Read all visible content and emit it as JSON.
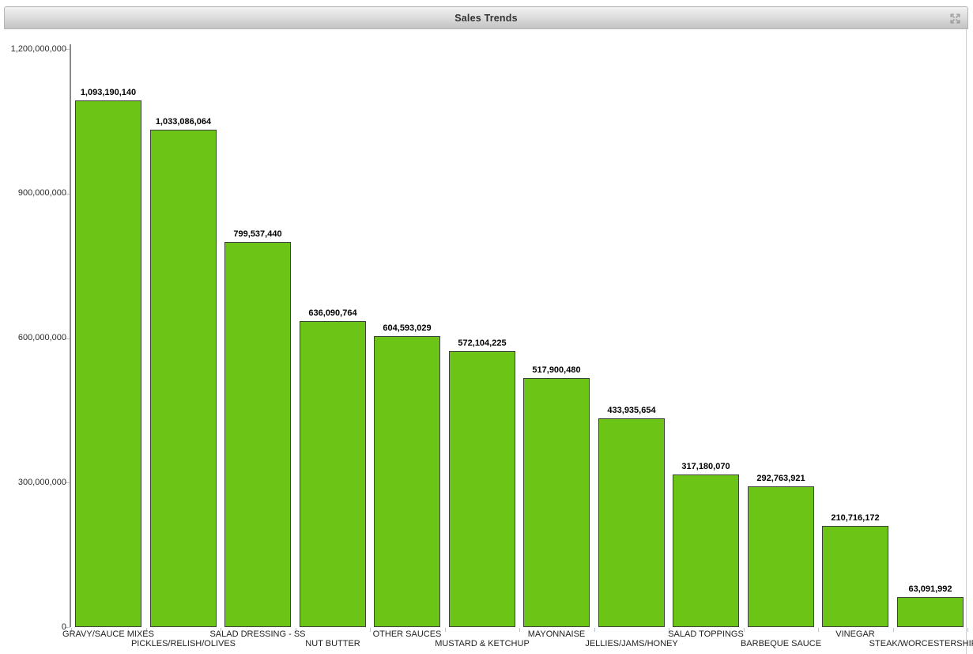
{
  "panel": {
    "title": "Sales Trends",
    "tool_icon": "maximize-icon"
  },
  "colors": {
    "bar_fill": "#6CC417",
    "bar_border": "#3F3F3F",
    "axis": "#8A8A8A",
    "tick": "#B9C6D2",
    "title_text": "#333333",
    "icon_gray": "#8F8F8F"
  },
  "chart_data": {
    "type": "bar",
    "title": "Sales Trends",
    "categories": [
      "GRAVY/SAUCE MIXES",
      "PICKLES/RELISH/OLIVES",
      "SALAD DRESSING - SS",
      "NUT BUTTER",
      "OTHER SAUCES",
      "MUSTARD & KETCHUP",
      "MAYONNAISE",
      "JELLIES/JAMS/HONEY",
      "SALAD TOPPINGS",
      "BARBEQUE SAUCE",
      "VINEGAR",
      "STEAK/WORCESTERSHIRE S"
    ],
    "values": [
      1093190140,
      1033086064,
      799537440,
      636090764,
      604593029,
      572104225,
      517900480,
      433935654,
      317180070,
      292763921,
      210716172,
      63091992
    ],
    "value_labels": [
      "1,093,190,140",
      "1,033,086,064",
      "799,537,440",
      "636,090,764",
      "604,593,029",
      "572,104,225",
      "517,900,480",
      "433,935,654",
      "317,180,070",
      "292,763,921",
      "210,716,172",
      "63,091,992"
    ],
    "xlabel": "",
    "ylabel": "",
    "ylim": [
      0,
      1200000000
    ],
    "y_ticks": [
      0,
      300000000,
      600000000,
      900000000,
      1200000000
    ],
    "y_tick_labels": [
      "0",
      "300,000,000",
      "600,000,000",
      "900,000,000",
      "1,200,000,000"
    ],
    "grid": false,
    "legend": "none",
    "bar_color": "#6CC417"
  }
}
